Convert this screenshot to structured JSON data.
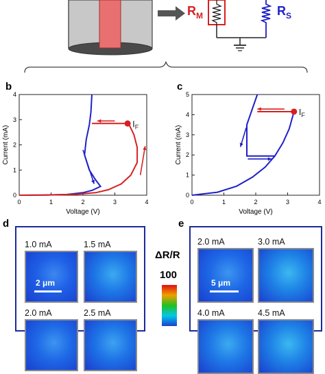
{
  "schematic": {
    "rm_label": "R",
    "rm_sub": "M",
    "rs_label": "R",
    "rs_sub": "S",
    "colors": {
      "rm": "#d62020",
      "rs": "#1f1fc8",
      "rod": "#e87070",
      "arrow": "#444444"
    }
  },
  "panels": {
    "b": "b",
    "c": "c",
    "d": "d",
    "e": "e"
  },
  "chart_data": [
    {
      "type": "line",
      "panel": "b",
      "xlabel": "Voltage (V)",
      "ylabel": "Current (mA)",
      "xlim": [
        0,
        4
      ],
      "ylim": [
        0,
        4
      ],
      "xticks": [
        0,
        1,
        2,
        3,
        4
      ],
      "yticks": [
        0,
        1,
        2,
        3,
        4
      ],
      "grid": false,
      "annotation": {
        "text": "I",
        "sub": "F",
        "x": 3.4,
        "y": 2.85
      },
      "series": [
        {
          "color": "#1f1fc8",
          "points": [
            [
              0,
              0
            ],
            [
              0.8,
              0.005
            ],
            [
              1.5,
              0.03
            ],
            [
              2.0,
              0.1
            ],
            [
              2.3,
              0.2
            ],
            [
              2.55,
              0.35
            ],
            [
              2.4,
              0.6
            ],
            [
              2.2,
              1.0
            ],
            [
              2.05,
              1.6
            ],
            [
              2.1,
              2.2
            ],
            [
              2.2,
              2.8
            ],
            [
              2.25,
              3.3
            ],
            [
              2.28,
              4.0
            ]
          ]
        },
        {
          "color": "#d62020",
          "points": [
            [
              0,
              0
            ],
            [
              1.0,
              0.01
            ],
            [
              1.8,
              0.04
            ],
            [
              2.4,
              0.1
            ],
            [
              2.8,
              0.22
            ],
            [
              3.2,
              0.45
            ],
            [
              3.5,
              0.8
            ],
            [
              3.7,
              1.3
            ],
            [
              3.7,
              1.9
            ],
            [
              3.6,
              2.4
            ],
            [
              3.45,
              2.8
            ],
            [
              3.4,
              2.85
            ],
            [
              2.28,
              2.85
            ]
          ]
        }
      ],
      "arrows": [
        {
          "color": "#d62020",
          "from": [
            3.0,
            2.95
          ],
          "to": [
            2.45,
            2.95
          ]
        },
        {
          "color": "#d62020",
          "from": [
            3.8,
            0.8
          ],
          "to": [
            3.95,
            1.95
          ]
        },
        {
          "color": "#1f1fc8",
          "from": [
            2.0,
            1.8
          ],
          "to": [
            2.35,
            0.45
          ]
        }
      ]
    },
    {
      "type": "line",
      "panel": "c",
      "xlabel": "Voltage (V)",
      "ylabel": "Current (mA)",
      "xlim": [
        0,
        4
      ],
      "ylim": [
        0,
        5
      ],
      "xticks": [
        0,
        1,
        2,
        3,
        4
      ],
      "yticks": [
        0,
        1,
        2,
        3,
        4,
        5
      ],
      "grid": false,
      "annotation": {
        "text": "I",
        "sub": "F",
        "x": 3.2,
        "y": 4.15
      },
      "series": [
        {
          "color": "#1f1fc8",
          "points": [
            [
              0,
              0
            ],
            [
              0.8,
              0.15
            ],
            [
              1.4,
              0.45
            ],
            [
              1.9,
              0.9
            ],
            [
              2.3,
              1.4
            ],
            [
              2.6,
              1.95
            ],
            [
              2.85,
              2.6
            ],
            [
              3.05,
              3.3
            ],
            [
              3.2,
              4.15
            ]
          ]
        },
        {
          "color": "#1f1fc8",
          "points": [
            [
              2.6,
              1.95
            ],
            [
              1.72,
              1.95
            ],
            [
              1.72,
              3.5
            ],
            [
              2.05,
              5.0
            ]
          ]
        },
        {
          "color": "#d62020",
          "points": [
            [
              3.2,
              4.15
            ],
            [
              2.05,
              4.15
            ]
          ]
        }
      ],
      "arrows": [
        {
          "color": "#d62020",
          "from": [
            2.9,
            4.28
          ],
          "to": [
            2.05,
            4.28
          ]
        },
        {
          "color": "#1f1fc8",
          "from": [
            1.7,
            3.35
          ],
          "to": [
            1.52,
            2.4
          ]
        },
        {
          "color": "#1f1fc8",
          "from": [
            1.75,
            1.8
          ],
          "to": [
            2.5,
            1.8
          ]
        }
      ]
    }
  ],
  "maps_d": {
    "items": [
      {
        "label": "1.0 mA",
        "intensity": 0.25
      },
      {
        "label": "1.5 mA",
        "intensity": 0.5
      },
      {
        "label": "2.0 mA",
        "intensity": 0.35
      },
      {
        "label": "2.5 mA",
        "intensity": 0.45
      }
    ],
    "scale": "2 μm"
  },
  "maps_e": {
    "items": [
      {
        "label": "2.0 mA",
        "intensity": 0.35
      },
      {
        "label": "3.0 mA",
        "intensity": 0.6
      },
      {
        "label": "4.0 mA",
        "intensity": 0.5
      },
      {
        "label": "4.5 mA",
        "intensity": 0.6
      }
    ],
    "scale": "5 μm"
  },
  "colorbar": {
    "title": "ΔR/R",
    "max": "100",
    "stops": [
      "#e01010",
      "#f0a000",
      "#20c020",
      "#00c8e8",
      "#1a40d0"
    ]
  }
}
